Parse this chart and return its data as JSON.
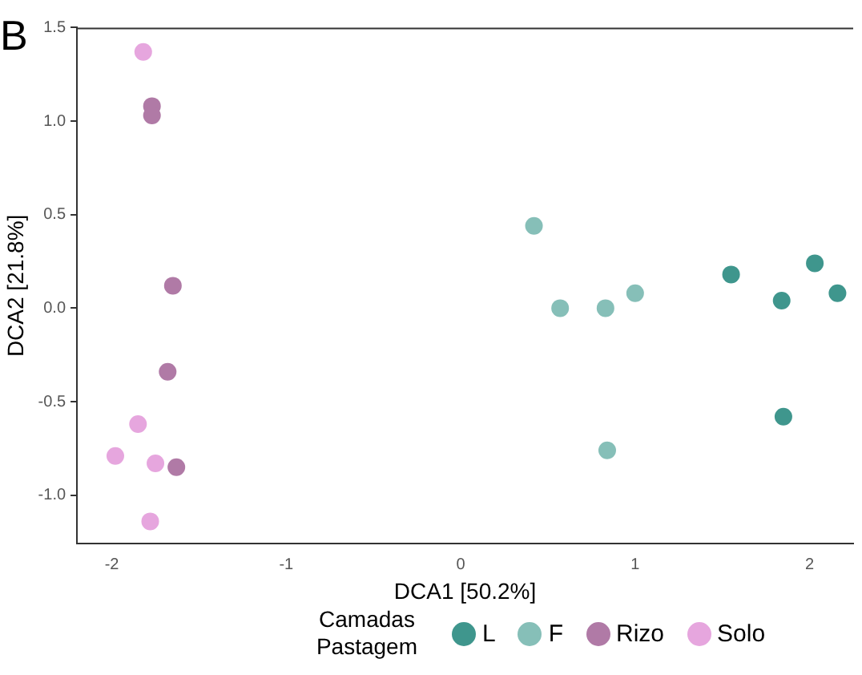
{
  "chart_data": {
    "type": "scatter",
    "title": "B",
    "xlabel": "DCA1 [50.2%]",
    "ylabel": "DCA2 [21.8%]",
    "legend_title": "Camadas Pastagem",
    "legend": "bottom",
    "grid": false,
    "marker": "circle",
    "xlim": [
      -2.2,
      2.25
    ],
    "ylim": [
      -1.26,
      1.5
    ],
    "xticks": [
      -2,
      -1,
      0,
      1,
      2
    ],
    "yticks": [
      {
        "value": -1,
        "label": "-1.0"
      },
      {
        "value": -0.5,
        "label": "-0.5"
      },
      {
        "value": 0,
        "label": "0.0"
      },
      {
        "value": 0.5,
        "label": "0.5"
      },
      {
        "value": 1,
        "label": "1.0"
      },
      {
        "value": 1.5,
        "label": "1.5"
      }
    ],
    "series": [
      {
        "name": "L",
        "color": "#3f968d",
        "x": [
          1.55,
          1.84,
          2.03,
          2.16,
          1.85
        ],
        "values": [
          0.18,
          0.04,
          0.24,
          0.08,
          -0.58
        ]
      },
      {
        "name": "F",
        "color": "#86bfb8",
        "x": [
          0.42,
          0.57,
          0.83,
          1.0,
          0.84
        ],
        "values": [
          0.44,
          0.0,
          0.0,
          0.08,
          -0.76
        ]
      },
      {
        "name": "Rizo",
        "color": "#b07aa6",
        "x": [
          -1.77,
          -1.77,
          -1.65,
          -1.68,
          -1.63
        ],
        "values": [
          1.08,
          1.03,
          0.12,
          -0.34,
          -0.85
        ]
      },
      {
        "name": "Solo",
        "color": "#e6a6de",
        "x": [
          -1.82,
          -1.85,
          -1.98,
          -1.75,
          -1.78
        ],
        "values": [
          1.37,
          -0.62,
          -0.79,
          -0.83,
          -1.14
        ]
      }
    ]
  }
}
